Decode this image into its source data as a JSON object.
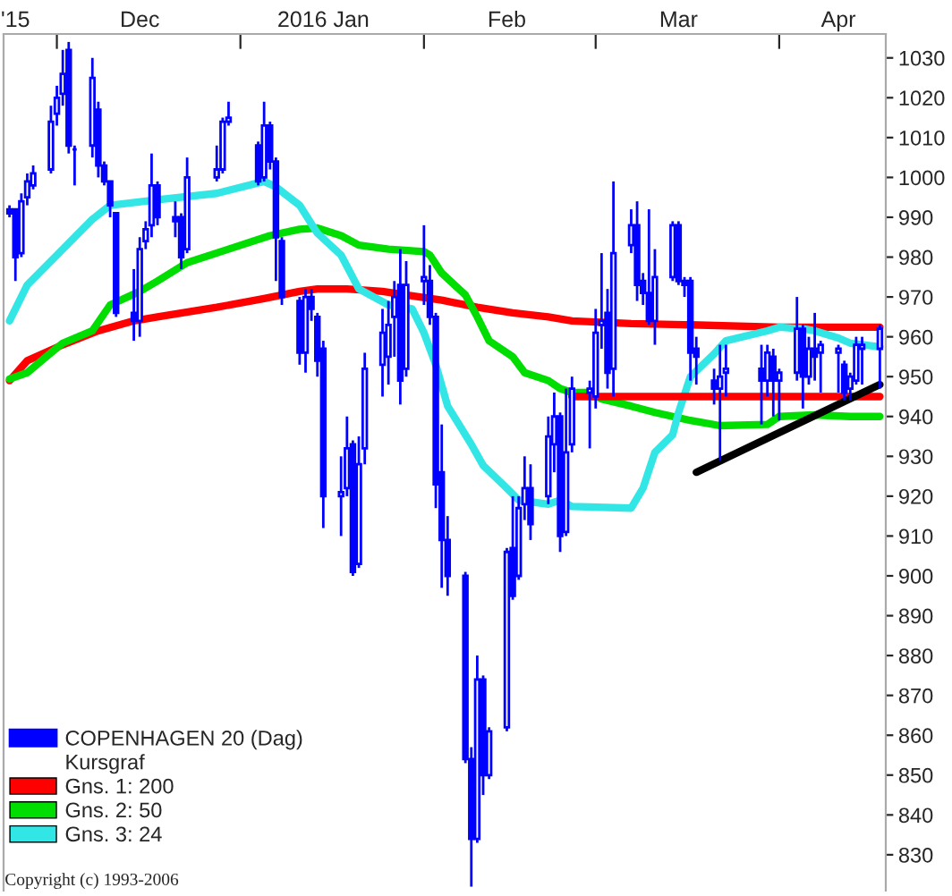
{
  "chart_data": {
    "type": "candlestick",
    "x": [
      "2015-11-23",
      "2015-11-24",
      "2015-11-25",
      "2015-11-26",
      "2015-11-27",
      "2015-11-30",
      "2015-12-01",
      "2015-12-02",
      "2015-12-03",
      "2015-12-04",
      "2015-12-07",
      "2015-12-08",
      "2015-12-09",
      "2015-12-10",
      "2015-12-11",
      "2015-12-14",
      "2015-12-15",
      "2015-12-16",
      "2015-12-17",
      "2015-12-18",
      "2015-12-21",
      "2015-12-22",
      "2015-12-23",
      "2015-12-28",
      "2015-12-29",
      "2015-12-30",
      "2016-01-04",
      "2016-01-05",
      "2016-01-06",
      "2016-01-07",
      "2016-01-08",
      "2016-01-11",
      "2016-01-12",
      "2016-01-13",
      "2016-01-14",
      "2016-01-15",
      "2016-01-18",
      "2016-01-19",
      "2016-01-20",
      "2016-01-21",
      "2016-01-22",
      "2016-01-25",
      "2016-01-26",
      "2016-01-27",
      "2016-01-28",
      "2016-01-29",
      "2016-02-01",
      "2016-02-02",
      "2016-02-03",
      "2016-02-04",
      "2016-02-05",
      "2016-02-08",
      "2016-02-09",
      "2016-02-10",
      "2016-02-11",
      "2016-02-12",
      "2016-02-15",
      "2016-02-16",
      "2016-02-17",
      "2016-02-18",
      "2016-02-19",
      "2016-02-22",
      "2016-02-23",
      "2016-02-24",
      "2016-02-25",
      "2016-02-26",
      "2016-02-29",
      "2016-03-01",
      "2016-03-02",
      "2016-03-03",
      "2016-03-04",
      "2016-03-07",
      "2016-03-08",
      "2016-03-09",
      "2016-03-10",
      "2016-03-11",
      "2016-03-14",
      "2016-03-15",
      "2016-03-16",
      "2016-03-17",
      "2016-03-18",
      "2016-03-21",
      "2016-03-22",
      "2016-03-23",
      "2016-03-29",
      "2016-03-30",
      "2016-03-31",
      "2016-04-01",
      "2016-04-04",
      "2016-04-05",
      "2016-04-06",
      "2016-04-07",
      "2016-04-08",
      "2016-04-11",
      "2016-04-12",
      "2016-04-13",
      "2016-04-14",
      "2016-04-15",
      "2016-04-18"
    ],
    "series": [
      {
        "name": "COPENHAGEN 20 (Dag)",
        "color": "#0000ff",
        "ohlc": [
          [
            992,
            993,
            990,
            991
          ],
          [
            992,
            992,
            974,
            980
          ],
          [
            981,
            996,
            980,
            994
          ],
          [
            995,
            1001,
            993,
            999
          ],
          [
            998,
            1003,
            997,
            1001
          ],
          [
            1002,
            1018,
            1001,
            1014
          ],
          [
            1016,
            1023,
            1013,
            1020
          ],
          [
            1021,
            1032,
            1018,
            1026
          ],
          [
            1032,
            1034,
            1006,
            1008
          ],
          [
            1007,
            1008,
            998,
            1007
          ],
          [
            1008,
            1030,
            1005,
            1025
          ],
          [
            1017,
            1019,
            1000,
            1003
          ],
          [
            1003,
            1004,
            998,
            999
          ],
          [
            999,
            999,
            990,
            993
          ],
          [
            991,
            991,
            965,
            966
          ],
          [
            966,
            977,
            959,
            964
          ],
          [
            964,
            985,
            960,
            982
          ],
          [
            984,
            989,
            982,
            987
          ],
          [
            988,
            1006,
            985,
            998
          ],
          [
            998,
            999,
            988,
            990
          ],
          [
            990,
            994,
            985,
            989
          ],
          [
            990,
            991,
            977,
            980
          ],
          [
            982,
            1005,
            981,
            1000
          ],
          [
            1000,
            1008,
            999,
            1002
          ],
          [
            1002,
            1015,
            1001,
            1014
          ],
          [
            1014,
            1019,
            1013,
            1015
          ],
          [
            1008,
            1009,
            998,
            999
          ],
          [
            1000,
            1019,
            999,
            1013
          ],
          [
            1013,
            1014,
            1002,
            1004
          ],
          [
            1004,
            1005,
            974,
            985
          ],
          [
            984,
            985,
            968,
            970
          ],
          [
            969,
            970,
            953,
            956
          ],
          [
            956,
            972,
            951,
            970
          ],
          [
            970,
            972,
            964,
            967
          ],
          [
            965,
            966,
            950,
            954
          ],
          [
            957,
            959,
            912,
            920
          ],
          [
            920,
            930,
            910,
            921
          ],
          [
            922,
            940,
            920,
            932
          ],
          [
            933,
            934,
            900,
            901
          ],
          [
            903,
            935,
            902,
            928
          ],
          [
            932,
            956,
            928,
            952
          ],
          [
            953,
            967,
            945,
            961
          ],
          [
            955,
            969,
            948,
            963
          ],
          [
            965,
            974,
            955,
            970
          ],
          [
            973,
            982,
            943,
            949
          ],
          [
            952,
            979,
            950,
            973
          ],
          [
            974,
            988,
            968,
            975
          ],
          [
            974,
            978,
            963,
            965
          ],
          [
            965,
            966,
            917,
            923
          ],
          [
            926,
            938,
            897,
            909
          ],
          [
            909,
            915,
            895,
            900
          ],
          [
            900,
            901,
            853,
            854
          ],
          [
            854,
            857,
            822,
            834
          ],
          [
            834,
            880,
            833,
            874
          ],
          [
            874,
            875,
            845,
            850
          ],
          [
            850,
            862,
            849,
            861
          ],
          [
            862,
            907,
            861,
            906
          ],
          [
            907,
            920,
            894,
            895
          ],
          [
            900,
            920,
            899,
            917
          ],
          [
            918,
            930,
            914,
            922
          ],
          [
            922,
            928,
            909,
            913
          ],
          [
            920,
            940,
            918,
            935
          ],
          [
            933,
            946,
            926,
            940
          ],
          [
            940,
            941,
            906,
            910
          ],
          [
            911,
            947,
            910,
            931
          ],
          [
            933,
            950,
            931,
            947
          ],
          [
            946,
            949,
            932,
            947
          ],
          [
            945,
            967,
            942,
            961
          ],
          [
            963,
            981,
            957,
            964
          ],
          [
            966,
            972,
            947,
            951
          ],
          [
            952,
            999,
            945,
            981
          ],
          [
            983,
            992,
            981,
            988
          ],
          [
            988,
            994,
            969,
            973
          ],
          [
            974,
            976,
            968,
            971
          ],
          [
            971,
            992,
            963,
            964
          ],
          [
            964,
            982,
            958,
            975
          ],
          [
            975,
            989,
            974,
            988
          ],
          [
            988,
            989,
            973,
            974
          ],
          [
            974,
            975,
            970,
            973
          ],
          [
            974,
            975,
            949,
            956
          ],
          [
            957,
            960,
            948,
            955
          ],
          [
            949,
            952,
            943,
            947
          ],
          [
            947,
            958,
            929,
            950
          ],
          [
            951,
            958,
            945,
            952
          ],
          [
            952,
            958,
            938,
            949
          ],
          [
            949,
            958,
            945,
            956
          ],
          [
            955,
            957,
            940,
            949
          ],
          [
            949,
            952,
            939,
            951
          ],
          [
            951,
            970,
            949,
            962
          ],
          [
            962,
            963,
            942,
            950
          ],
          [
            950,
            960,
            948,
            957
          ],
          [
            957,
            966,
            949,
            955
          ],
          [
            956,
            959,
            946,
            958
          ],
          [
            956,
            958,
            946,
            957
          ],
          [
            953,
            954,
            944,
            946
          ],
          [
            947,
            951,
            944,
            950
          ],
          [
            949,
            960,
            948,
            958
          ],
          [
            957,
            960,
            948,
            958
          ],
          [
            957,
            963,
            947,
            962
          ]
        ]
      },
      {
        "name": "Gns. 1: 200",
        "type": "line",
        "color": "#ff0000",
        "x": [
          "2015-11-23",
          "2015-11-26",
          "2015-12-02",
          "2015-12-08",
          "2015-12-14",
          "2015-12-18",
          "2015-12-28",
          "2016-01-05",
          "2016-01-11",
          "2016-01-14",
          "2016-01-19",
          "2016-01-25",
          "2016-01-29",
          "2016-02-04",
          "2016-02-10",
          "2016-02-16",
          "2016-02-22",
          "2016-02-26",
          "2016-03-07",
          "2016-03-17",
          "2016-04-01",
          "2016-04-18"
        ],
        "values": [
          949,
          954,
          958,
          961.5,
          964,
          965,
          967.4,
          969.6,
          971.4,
          972,
          972,
          971.4,
          970.5,
          969.2,
          967.4,
          966,
          965,
          964,
          963.3,
          963,
          962.4,
          962.4
        ]
      },
      {
        "name": "Gns. 2: 50",
        "type": "line",
        "color": "#00dd00",
        "x": [
          "2015-11-23",
          "2015-11-26",
          "2015-11-30",
          "2015-12-02",
          "2015-12-07",
          "2015-12-10",
          "2015-12-15",
          "2015-12-18",
          "2015-12-23",
          "2015-12-30",
          "2016-01-06",
          "2016-01-11",
          "2016-01-14",
          "2016-01-18",
          "2016-01-21",
          "2016-01-26",
          "2016-02-01",
          "2016-02-02",
          "2016-02-04",
          "2016-02-08",
          "2016-02-10",
          "2016-02-12",
          "2016-02-16",
          "2016-02-18",
          "2016-02-22",
          "2016-02-24",
          "2016-02-26",
          "2016-02-29",
          "2016-03-02",
          "2016-03-07",
          "2016-03-11",
          "2016-03-17",
          "2016-03-22",
          "2016-03-30",
          "2016-04-01",
          "2016-04-07",
          "2016-04-13",
          "2016-04-18"
        ],
        "values": [
          949.4,
          951,
          956,
          958.4,
          961.5,
          968,
          971.4,
          974,
          978.6,
          982,
          985.4,
          987,
          987.3,
          985.4,
          983,
          982,
          981.4,
          980.5,
          976,
          970.5,
          965,
          959,
          955,
          951,
          949,
          947,
          946,
          946,
          944.4,
          942.6,
          941,
          939,
          937.7,
          938,
          940,
          940.4,
          940,
          940
        ]
      },
      {
        "name": "Gns. 3: 24",
        "type": "line",
        "color": "#33e6e6",
        "x": [
          "2015-11-23",
          "2015-11-26",
          "2015-12-02",
          "2015-12-07",
          "2015-12-10",
          "2015-12-18",
          "2015-12-28",
          "2016-01-05",
          "2016-01-07",
          "2016-01-11",
          "2016-01-14",
          "2016-01-18",
          "2016-01-21",
          "2016-01-26",
          "2016-01-30",
          "2016-02-01",
          "2016-02-03",
          "2016-02-05",
          "2016-02-09",
          "2016-02-11",
          "2016-02-15",
          "2016-02-17",
          "2016-02-22",
          "2016-02-24",
          "2016-02-26",
          "2016-03-07",
          "2016-03-09",
          "2016-03-11",
          "2016-03-14",
          "2016-03-15",
          "2016-03-17",
          "2016-03-21",
          "2016-03-23",
          "2016-03-30",
          "2016-04-01",
          "2016-04-05",
          "2016-04-07",
          "2016-04-11",
          "2016-04-13",
          "2016-04-18"
        ],
        "values": [
          964,
          973,
          982,
          989.5,
          993,
          994.4,
          996,
          999,
          997.6,
          993,
          986,
          980.5,
          972,
          968,
          967,
          961,
          953,
          942.6,
          933,
          927.7,
          922,
          919,
          918,
          919,
          917.4,
          917,
          922,
          931,
          935.4,
          941,
          950,
          955.7,
          959,
          961.5,
          962.4,
          962,
          961.5,
          959.7,
          958.4,
          957.5
        ]
      },
      {
        "type": "line",
        "color": "#ff0000",
        "x": [
          "2016-02-26",
          "2016-04-18"
        ],
        "values": [
          945,
          945
        ]
      },
      {
        "type": "line",
        "color": "#000000",
        "x": [
          "2016-03-18",
          "2016-04-18"
        ],
        "values": [
          926,
          948
        ]
      }
    ],
    "xlim": [
      "2015-11-22",
      "2016-04-19"
    ],
    "xticks": [
      {
        "value": "2015-12-01",
        "label": null
      },
      {
        "value": "2016-01-01",
        "label": null
      },
      {
        "value": "2016-02-01",
        "label": null
      },
      {
        "value": "2016-03-01",
        "label": null
      },
      {
        "value": "2016-04-01",
        "label": null
      },
      {
        "value": "2015-11-24",
        "label": "'15"
      },
      {
        "value": "2015-12-15",
        "label": "Dec"
      },
      {
        "value": "2016-01-15",
        "label": "2016 Jan"
      },
      {
        "value": "2016-02-15",
        "label": "Feb"
      },
      {
        "value": "2016-03-15",
        "label": "Mar"
      },
      {
        "value": "2016-04-11",
        "label": "Apr"
      }
    ],
    "ylim": [
      821,
      1036
    ],
    "yticks": [
      830,
      840,
      850,
      860,
      870,
      880,
      890,
      900,
      910,
      920,
      930,
      940,
      950,
      960,
      970,
      980,
      990,
      1000,
      1010,
      1020,
      1030
    ],
    "legend": "bottom left",
    "annotations": [
      "Kursgraf",
      "Copyright (c) 1993-2006"
    ]
  }
}
